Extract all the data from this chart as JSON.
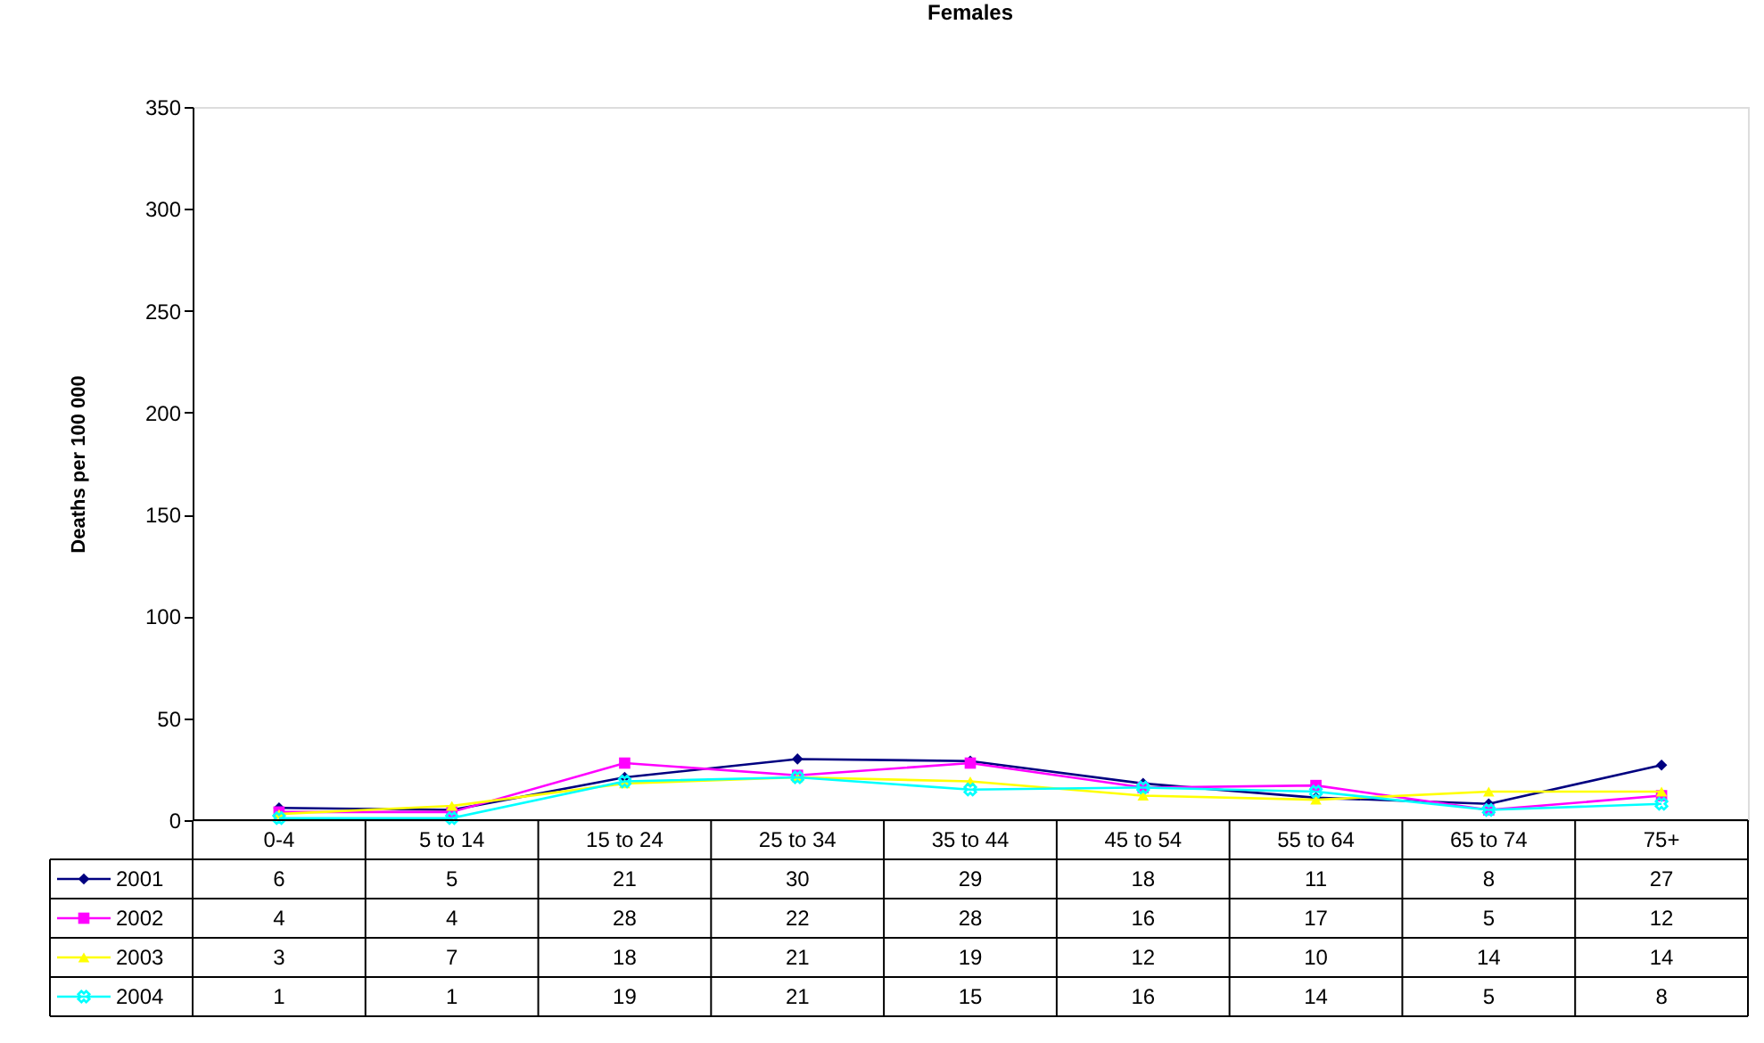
{
  "chart_data": {
    "type": "line",
    "title": "Females",
    "ylabel": "Deaths per 100 000",
    "categories": [
      "0-4",
      "5 to  14",
      "15 to 24",
      "25 to 34",
      "35 to 44",
      "45 to 54",
      "55 to 64",
      "65 to 74",
      "75+"
    ],
    "series": [
      {
        "name": "2001",
        "color": "#000080",
        "marker": "diamond",
        "values": [
          6,
          5,
          21,
          30,
          29,
          18,
          11,
          8,
          27
        ]
      },
      {
        "name": "2002",
        "color": "#ff00ff",
        "marker": "square",
        "values": [
          4,
          4,
          28,
          22,
          28,
          16,
          17,
          5,
          12
        ]
      },
      {
        "name": "2003",
        "color": "#ffff00",
        "marker": "triangle",
        "values": [
          3,
          7,
          18,
          21,
          19,
          12,
          10,
          14,
          14
        ]
      },
      {
        "name": "2004",
        "color": "#00ffff",
        "marker": "cross",
        "values": [
          1,
          1,
          19,
          21,
          15,
          16,
          14,
          5,
          8
        ]
      }
    ],
    "ylim": [
      0,
      350
    ],
    "yticks": [
      0,
      50,
      100,
      150,
      200,
      250,
      300,
      350
    ],
    "data_labels": true,
    "legend": "bottom",
    "grid": false
  }
}
